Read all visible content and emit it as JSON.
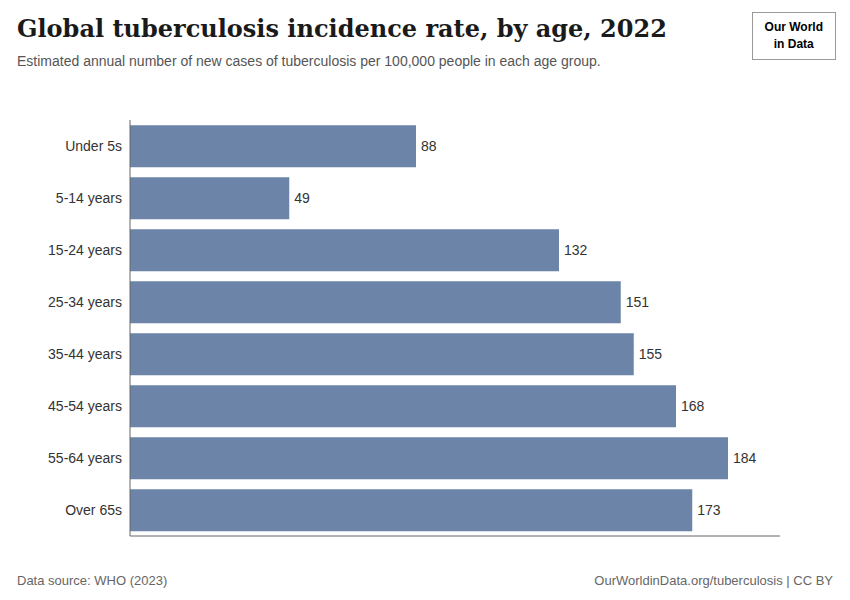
{
  "chart_data": {
    "type": "bar",
    "orientation": "horizontal",
    "title": "Global tuberculosis incidence rate, by age, 2022",
    "subtitle": "Estimated annual number of new cases of tuberculosis per 100,000 people in each age group.",
    "categories": [
      "Under 5s",
      "5-14 years",
      "15-24 years",
      "25-34 years",
      "35-44 years",
      "45-54 years",
      "55-64 years",
      "Over 65s"
    ],
    "values": [
      88,
      49,
      132,
      151,
      155,
      168,
      184,
      173
    ],
    "color": "#6B84A8",
    "xlim": [
      0,
      200
    ],
    "data_labels": true,
    "tick_labels": "y",
    "annotations": [
      "Data source: WHO (2023)",
      "OurWorldinData.org/tuberculosis | CC BY",
      "Our World\nin Data"
    ]
  }
}
